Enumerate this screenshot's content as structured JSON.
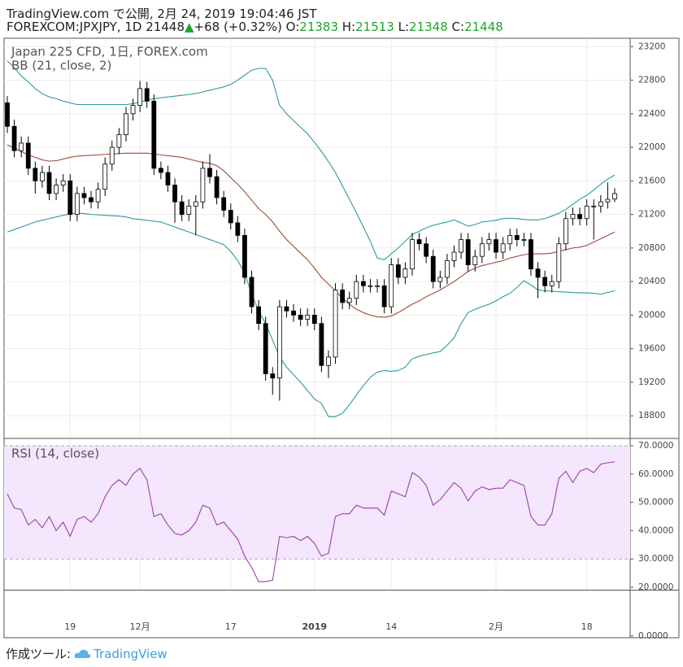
{
  "header": {
    "title": "TradingView.com で公開, 2月 24, 2019 19:04:46 JST",
    "symbol": "FOREXCOM:JPXJPY, 1D",
    "last": "21448",
    "change": "+68 (+0.32%)",
    "ohlc": [
      {
        "label": "O:",
        "value": "21383"
      },
      {
        "label": "H:",
        "value": "21513"
      },
      {
        "label": "L:",
        "value": "21348"
      },
      {
        "label": "C:",
        "value": "21448"
      }
    ]
  },
  "chart_data": [
    {
      "type": "candlestick",
      "legend": [
        "Japan 225 CFD, 1日, FOREX.com",
        "BB (21, close, 2)"
      ],
      "categories": [
        null,
        null,
        null,
        null,
        null,
        null,
        null,
        null,
        null,
        "19",
        null,
        null,
        null,
        null,
        null,
        null,
        null,
        null,
        null,
        "12月",
        null,
        null,
        null,
        null,
        null,
        null,
        null,
        null,
        null,
        null,
        null,
        null,
        "17",
        null,
        null,
        null,
        null,
        null,
        null,
        null,
        null,
        null,
        null,
        null,
        "2019",
        null,
        null,
        null,
        null,
        null,
        null,
        null,
        null,
        null,
        null,
        "14",
        null,
        null,
        null,
        null,
        null,
        null,
        null,
        null,
        null,
        null,
        null,
        null,
        null,
        null,
        "2月",
        null,
        null,
        null,
        null,
        null,
        null,
        null,
        null,
        null,
        null,
        null,
        null,
        "18",
        null,
        null,
        null,
        null
      ],
      "open": [
        22530,
        22250,
        21960,
        22050,
        21750,
        21600,
        21700,
        21450,
        21550,
        21600,
        21200,
        21450,
        21400,
        21350,
        21500,
        21800,
        22000,
        22150,
        22400,
        22500,
        22700,
        22550,
        21750,
        21700,
        21550,
        21350,
        21200,
        21300,
        21350,
        21750,
        21650,
        21400,
        21250,
        21100,
        20950,
        20450,
        20100,
        19900,
        19300,
        19250,
        20100,
        20050,
        20000,
        19950,
        20000,
        19900,
        19400,
        19500,
        20300,
        20150,
        20200,
        20400,
        20350,
        20350,
        20350,
        20100,
        20600,
        20450,
        20550,
        20900,
        20850,
        20700,
        20400,
        20450,
        20650,
        20750,
        20900,
        20600,
        20700,
        20850,
        20900,
        20750,
        20850,
        20950,
        20900,
        20900,
        20550,
        20450,
        20350,
        20400,
        20850,
        21150,
        21200,
        21150,
        21300,
        21300,
        21350,
        21383
      ],
      "high": [
        22610,
        22330,
        22130,
        22130,
        21830,
        21780,
        21780,
        21630,
        21680,
        21680,
        21530,
        21530,
        21480,
        21580,
        21880,
        22080,
        22230,
        22480,
        22580,
        22790,
        22780,
        22630,
        21830,
        21780,
        21630,
        21430,
        21380,
        21430,
        21830,
        21920,
        21730,
        21480,
        21330,
        21180,
        21030,
        20530,
        20180,
        19980,
        19380,
        20180,
        20180,
        20130,
        20080,
        20080,
        20080,
        19980,
        19580,
        20380,
        20380,
        20280,
        20480,
        20480,
        20430,
        20430,
        20430,
        20680,
        20680,
        20630,
        20980,
        20980,
        20930,
        20780,
        20530,
        20730,
        20830,
        20980,
        20980,
        20780,
        20930,
        20980,
        20980,
        20930,
        21030,
        21030,
        20980,
        20980,
        20630,
        20530,
        20480,
        20930,
        21230,
        21280,
        21280,
        21380,
        21380,
        21430,
        21580,
        21513
      ],
      "low": [
        22170,
        21880,
        21880,
        21670,
        21450,
        21520,
        21370,
        21370,
        21470,
        21120,
        21120,
        21320,
        21270,
        21270,
        21420,
        21720,
        21920,
        22070,
        22320,
        22420,
        22470,
        21670,
        21620,
        21470,
        21100,
        21120,
        21120,
        20950,
        21270,
        21570,
        21320,
        21170,
        21020,
        20870,
        20370,
        20020,
        19820,
        19220,
        19050,
        18980,
        19970,
        19920,
        19870,
        19870,
        19820,
        19320,
        19250,
        19420,
        20070,
        20070,
        20120,
        20270,
        20270,
        20270,
        20020,
        20020,
        20370,
        20370,
        20470,
        20770,
        20620,
        20320,
        20320,
        20370,
        20570,
        20670,
        20520,
        20520,
        20620,
        20770,
        20670,
        20670,
        20770,
        20820,
        20820,
        20470,
        20200,
        20270,
        20270,
        20320,
        20770,
        21070,
        21070,
        21070,
        20900,
        21220,
        21270,
        21348
      ],
      "close": [
        22250,
        21960,
        22050,
        21750,
        21600,
        21700,
        21450,
        21550,
        21600,
        21200,
        21450,
        21400,
        21350,
        21500,
        21800,
        22000,
        22150,
        22400,
        22500,
        22700,
        22550,
        21750,
        21700,
        21550,
        21350,
        21200,
        21300,
        21350,
        21750,
        21650,
        21400,
        21250,
        21100,
        20950,
        20450,
        20100,
        19900,
        19300,
        19250,
        20100,
        20050,
        20000,
        19950,
        20000,
        19900,
        19400,
        19500,
        20300,
        20150,
        20200,
        20400,
        20350,
        20350,
        20350,
        20100,
        20600,
        20450,
        20550,
        20900,
        20850,
        20700,
        20400,
        20450,
        20650,
        20750,
        20900,
        20600,
        20700,
        20850,
        20900,
        20750,
        20850,
        20950,
        20900,
        20900,
        20550,
        20450,
        20350,
        20400,
        20850,
        21150,
        21200,
        21150,
        21300,
        21300,
        21350,
        21380,
        21448
      ],
      "up_color": "#ffffff",
      "down_color": "#000000",
      "bands": [
        {
          "color": "#2a9aa0",
          "values": [
            23030,
            22950,
            22850,
            22780,
            22700,
            22640,
            22600,
            22580,
            22550,
            22530,
            22510,
            22510,
            22510,
            22510,
            22510,
            22510,
            22510,
            22510,
            22520,
            22540,
            22560,
            22580,
            22590,
            22600,
            22610,
            22620,
            22630,
            22640,
            22660,
            22680,
            22700,
            22720,
            22750,
            22800,
            22860,
            22920,
            22940,
            22940,
            22800,
            22500,
            22400,
            22320,
            22240,
            22160,
            22060,
            21950,
            21830,
            21700,
            21540,
            21380,
            21220,
            21050,
            20880,
            20680,
            20660,
            20730,
            20800,
            20880,
            20960,
            21000,
            21040,
            21070,
            21090,
            21110,
            21135,
            21100,
            21060,
            21080,
            21110,
            21120,
            21130,
            21150,
            21155,
            21150,
            21140,
            21135,
            21135,
            21150,
            21180,
            21215,
            21260,
            21320,
            21380,
            21430,
            21490,
            21560,
            21620,
            21670
          ]
        },
        {
          "color": "#a04a3c",
          "values": [
            22030,
            21990,
            21950,
            21910,
            21880,
            21850,
            21835,
            21840,
            21860,
            21880,
            21895,
            21900,
            21905,
            21910,
            21915,
            21920,
            21925,
            21930,
            21930,
            21930,
            21930,
            21920,
            21910,
            21900,
            21890,
            21880,
            21860,
            21840,
            21820,
            21810,
            21780,
            21720,
            21640,
            21560,
            21470,
            21370,
            21270,
            21200,
            21110,
            21000,
            20900,
            20820,
            20740,
            20660,
            20560,
            20450,
            20370,
            20290,
            20200,
            20130,
            20070,
            20030,
            20000,
            19980,
            19975,
            19990,
            20030,
            20080,
            20130,
            20170,
            20220,
            20260,
            20300,
            20350,
            20400,
            20460,
            20520,
            20560,
            20590,
            20610,
            20630,
            20650,
            20680,
            20700,
            20720,
            20730,
            20730,
            20730,
            20740,
            20760,
            20780,
            20800,
            20810,
            20830,
            20870,
            20910,
            20950,
            20990
          ]
        },
        {
          "color": "#2a9aa0",
          "values": [
            20990,
            21020,
            21050,
            21080,
            21110,
            21130,
            21150,
            21170,
            21190,
            21205,
            21215,
            21210,
            21200,
            21195,
            21190,
            21185,
            21180,
            21170,
            21150,
            21140,
            21130,
            21120,
            21110,
            21080,
            21050,
            21020,
            20990,
            20960,
            20930,
            20900,
            20870,
            20840,
            20760,
            20650,
            20500,
            20250,
            20050,
            19900,
            19700,
            19500,
            19380,
            19290,
            19200,
            19100,
            19000,
            18950,
            18790,
            18790,
            18830,
            18930,
            19050,
            19160,
            19260,
            19320,
            19340,
            19330,
            19340,
            19380,
            19480,
            19510,
            19530,
            19550,
            19565,
            19640,
            19730,
            19900,
            20030,
            20070,
            20100,
            20130,
            20170,
            20220,
            20260,
            20330,
            20410,
            20360,
            20300,
            20290,
            20285,
            20280,
            20275,
            20270,
            20265,
            20265,
            20260,
            20250,
            20270,
            20290
          ]
        }
      ],
      "ylim": [
        18540,
        23300
      ],
      "yticks": [
        18800,
        19200,
        19600,
        20000,
        20400,
        20800,
        21200,
        21600,
        22000,
        22400,
        22800,
        23200
      ],
      "grid": true
    },
    {
      "type": "line",
      "title": "RSI (14, close)",
      "color": "#9c3fb0",
      "values": [
        53,
        48,
        47.5,
        42,
        44,
        41,
        45,
        40,
        43,
        38,
        44,
        45,
        43,
        46,
        52,
        56,
        58,
        56,
        60,
        62,
        58,
        45,
        46,
        42,
        39,
        38.5,
        40,
        43,
        49,
        48,
        42,
        43,
        40,
        37,
        31,
        27,
        22,
        22,
        22.5,
        38,
        37.5,
        38,
        36.5,
        38,
        35.5,
        31,
        32,
        45,
        46,
        46,
        49,
        48,
        48,
        48,
        45.5,
        54,
        53,
        52,
        60.5,
        59,
        56,
        49,
        51,
        54,
        57,
        55,
        50.5,
        54,
        55.5,
        54.5,
        55,
        55,
        58,
        57,
        56,
        45,
        42,
        42,
        46,
        58.5,
        61,
        57,
        61,
        62,
        60.5,
        63.5,
        64,
        64.3
      ],
      "band": [
        30,
        70
      ],
      "band_color": "#f4e6fc",
      "ylim": [
        19.14,
        72.3
      ],
      "yticks": [
        {
          "value": 20,
          "label": "20.0000"
        },
        {
          "value": 30,
          "label": "30.0000"
        },
        {
          "value": 40,
          "label": "40.0000"
        },
        {
          "value": 50,
          "label": "50.0000"
        },
        {
          "value": 60,
          "label": "60.0000"
        },
        {
          "value": 70,
          "label": "70.0000"
        }
      ],
      "grid": true
    },
    {
      "type": "line",
      "ylim": [
        -0.6,
        16
      ],
      "yticks": [
        {
          "value": 0,
          "label": "0.0000"
        }
      ],
      "grid": true
    }
  ],
  "footer": {
    "made_with": "作成ツール:",
    "brand": "TradingView"
  }
}
